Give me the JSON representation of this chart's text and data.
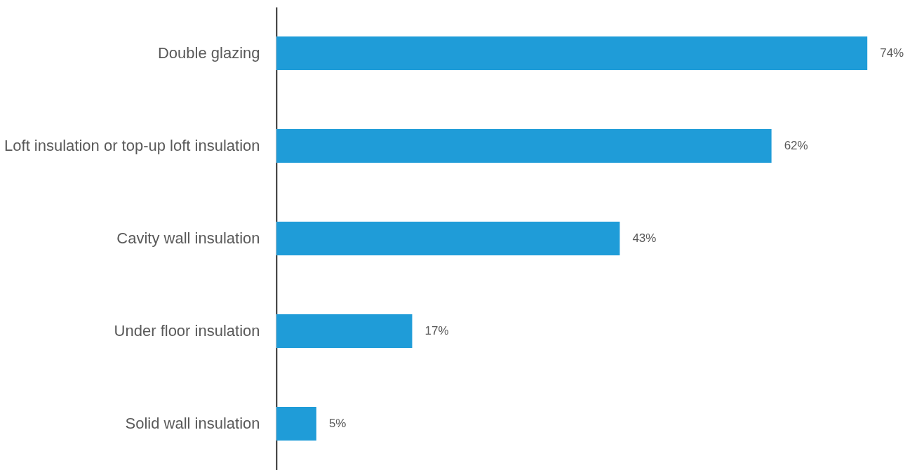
{
  "chart_data": {
    "type": "bar",
    "orientation": "horizontal",
    "categories": [
      "Double glazing",
      "Loft insulation or top-up loft insulation",
      "Cavity wall insulation",
      "Under floor insulation",
      "Solid wall insulation"
    ],
    "values": [
      74,
      62,
      43,
      17,
      5
    ],
    "value_labels": [
      "74%",
      "62%",
      "43%",
      "17%",
      "5%"
    ],
    "color": "#1f9cd8",
    "tick_labels": "y",
    "grid": false
  }
}
